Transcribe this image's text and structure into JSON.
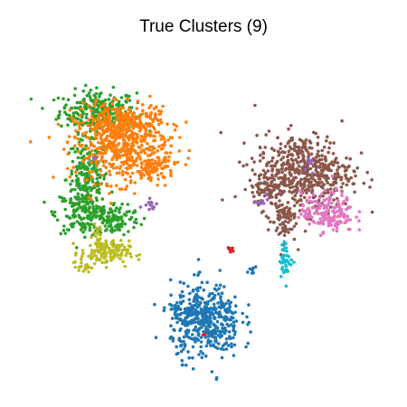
{
  "chart_data": {
    "type": "scatter",
    "title": "True Clusters (9)",
    "xlabel": "",
    "ylabel": "",
    "axes_visible": false,
    "grid": false,
    "legend": "none",
    "xlim": [
      0,
      100
    ],
    "ylim": [
      0,
      100
    ],
    "series": [
      {
        "color": "#2ca02c",
        "clusters": [
          {
            "x": 19,
            "y": 82,
            "sx": 5.5,
            "sy": 3.0,
            "n": 260
          },
          {
            "x": 16,
            "y": 62,
            "sx": 3.0,
            "sy": 6.0,
            "n": 200
          },
          {
            "x": 15,
            "y": 52,
            "sx": 4.0,
            "sy": 3.0,
            "n": 140
          },
          {
            "x": 24,
            "y": 50,
            "sx": 3.5,
            "sy": 2.5,
            "n": 110
          }
        ]
      },
      {
        "color": "#ff7f0e",
        "clusters": [
          {
            "x": 26,
            "y": 72,
            "sx": 7.0,
            "sy": 5.5,
            "n": 520
          },
          {
            "x": 35,
            "y": 65,
            "sx": 3.0,
            "sy": 2.0,
            "n": 70
          },
          {
            "x": 26,
            "y": 79,
            "sx": 5.0,
            "sy": 2.5,
            "n": 160
          }
        ]
      },
      {
        "color": "#bcbd22",
        "clusters": [
          {
            "x": 21,
            "y": 40,
            "sx": 3.5,
            "sy": 1.8,
            "n": 130
          },
          {
            "x": 19,
            "y": 44,
            "sx": 1.0,
            "sy": 2.2,
            "n": 25
          },
          {
            "x": 15,
            "y": 36,
            "sx": 1.0,
            "sy": 0.8,
            "n": 18
          }
        ]
      },
      {
        "color": "#8c564b",
        "clusters": [
          {
            "x": 78,
            "y": 64,
            "sx": 7.0,
            "sy": 5.5,
            "n": 520
          },
          {
            "x": 72,
            "y": 50,
            "sx": 2.0,
            "sy": 3.5,
            "n": 70
          },
          {
            "x": 67,
            "y": 59,
            "sx": 2.5,
            "sy": 1.8,
            "n": 50
          }
        ]
      },
      {
        "color": "#e377c2",
        "clusters": [
          {
            "x": 85,
            "y": 52,
            "sx": 3.8,
            "sy": 3.0,
            "n": 170
          }
        ]
      },
      {
        "color": "#17becf",
        "clusters": [
          {
            "x": 73,
            "y": 38,
            "sx": 0.9,
            "sy": 2.5,
            "n": 45
          }
        ]
      },
      {
        "color": "#1f77b4",
        "clusters": [
          {
            "x": 50,
            "y": 20,
            "sx": 5.0,
            "sy": 5.5,
            "n": 430
          },
          {
            "x": 44,
            "y": 23,
            "sx": 2.5,
            "sy": 1.5,
            "n": 40
          },
          {
            "x": 63,
            "y": 35,
            "sx": 1.0,
            "sy": 0.5,
            "n": 8
          }
        ]
      },
      {
        "color": "#d62728",
        "clusters": [
          {
            "x": 57,
            "y": 41,
            "sx": 0.5,
            "sy": 0.3,
            "n": 12
          },
          {
            "x": 50,
            "y": 16,
            "sx": 0.3,
            "sy": 0.3,
            "n": 2
          }
        ]
      },
      {
        "color": "#9467bd",
        "clusters": [
          {
            "x": 34,
            "y": 55,
            "sx": 1.0,
            "sy": 1.2,
            "n": 14
          },
          {
            "x": 18,
            "y": 68,
            "sx": 0.5,
            "sy": 0.5,
            "n": 5
          },
          {
            "x": 66,
            "y": 56,
            "sx": 1.5,
            "sy": 1.0,
            "n": 10
          },
          {
            "x": 80,
            "y": 67,
            "sx": 1.0,
            "sy": 1.5,
            "n": 8
          }
        ]
      }
    ]
  }
}
